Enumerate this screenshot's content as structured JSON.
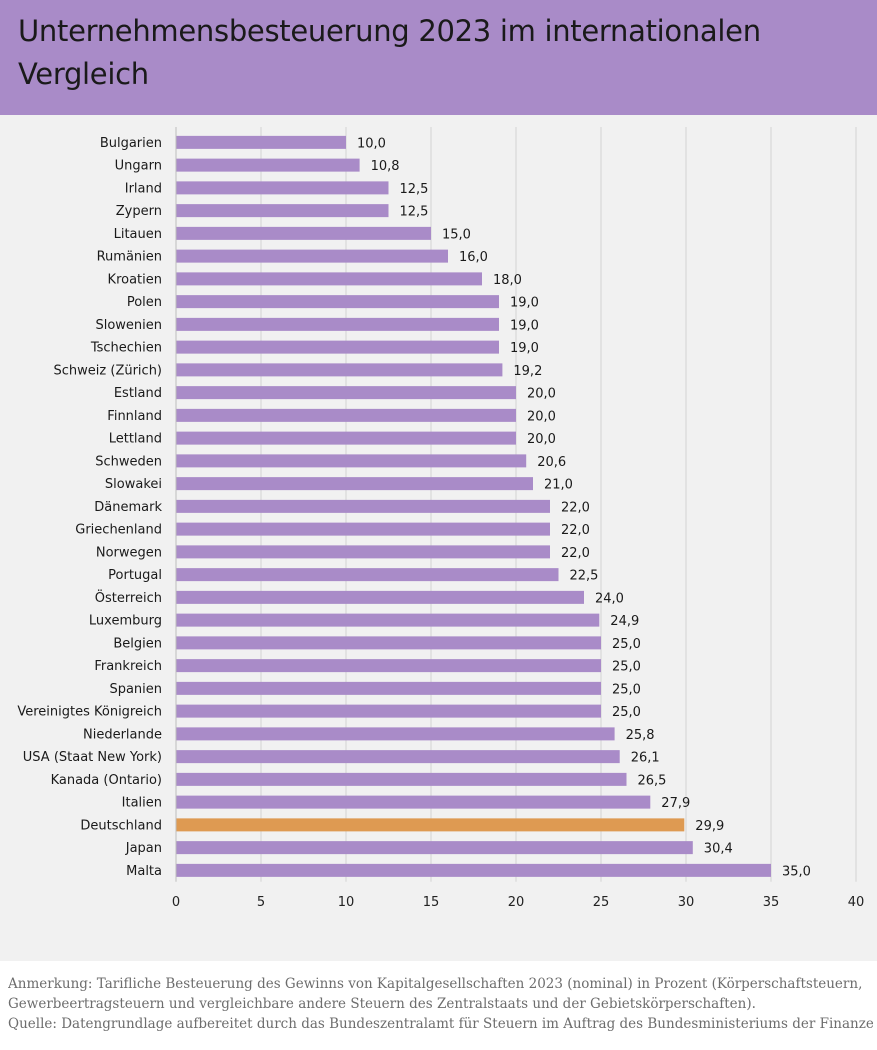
{
  "header": {
    "title": "Unternehmensbesteuerung 2023 im internationalen Vergleich"
  },
  "chart_data": {
    "type": "bar",
    "orientation": "horizontal",
    "title": "Unternehmensbesteuerung 2023 im internationalen Vergleich",
    "xlabel": "",
    "ylabel": "",
    "xlim": [
      0,
      40
    ],
    "x_ticks": [
      "0",
      "5",
      "10",
      "15",
      "20",
      "25",
      "30",
      "35",
      "40"
    ],
    "grid": "vertical",
    "bar_color": "#a98bc8",
    "highlight_color": "#de9a52",
    "highlight_category": "Deutschland",
    "categories": [
      "Bulgarien",
      "Ungarn",
      "Irland",
      "Zypern",
      "Litauen",
      "Rumänien",
      "Kroatien",
      "Polen",
      "Slowenien",
      "Tschechien",
      "Schweiz (Zürich)",
      "Estland",
      "Finnland",
      "Lettland",
      "Schweden",
      "Slowakei",
      "Dänemark",
      "Griechenland",
      "Norwegen",
      "Portugal",
      "Österreich",
      "Luxemburg",
      "Belgien",
      "Frankreich",
      "Spanien",
      "Vereinigtes Königreich",
      "Niederlande",
      "USA (Staat New York)",
      "Kanada (Ontario)",
      "Italien",
      "Deutschland",
      "Japan",
      "Malta"
    ],
    "values": [
      10.0,
      10.8,
      12.5,
      12.5,
      15.0,
      16.0,
      18.0,
      19.0,
      19.0,
      19.0,
      19.2,
      20.0,
      20.0,
      20.0,
      20.6,
      21.0,
      22.0,
      22.0,
      22.0,
      22.5,
      24.0,
      24.9,
      25.0,
      25.0,
      25.0,
      25.0,
      25.8,
      26.1,
      26.5,
      27.9,
      29.9,
      30.4,
      35.0
    ],
    "value_labels": [
      "10,0",
      "10,8",
      "12,5",
      "12,5",
      "15,0",
      "16,0",
      "18,0",
      "19,0",
      "19,0",
      "19,0",
      "19,2",
      "20,0",
      "20,0",
      "20,0",
      "20,6",
      "21,0",
      "22,0",
      "22,0",
      "22,0",
      "22,5",
      "24,0",
      "24,9",
      "25,0",
      "25,0",
      "25,0",
      "25,0",
      "25,8",
      "26,1",
      "26,5",
      "27,9",
      "29,9",
      "30,4",
      "35,0"
    ]
  },
  "footer": {
    "note_line1": "Anmerkung: Tarifliche Besteuerung des Gewinns von Kapitalgesellschaften 2023 (nominal) in Prozent (Körperschaftsteuern,",
    "note_line2": "Gewerbeertragsteuern und vergleichbare andere Steuern des Zentralstaats und der Gebietskörperschaften).",
    "source": "Quelle: Datengrundlage aufbereitet durch das Bundeszentralamt für Steuern im Auftrag des Bundesministeriums der Finanzen"
  }
}
